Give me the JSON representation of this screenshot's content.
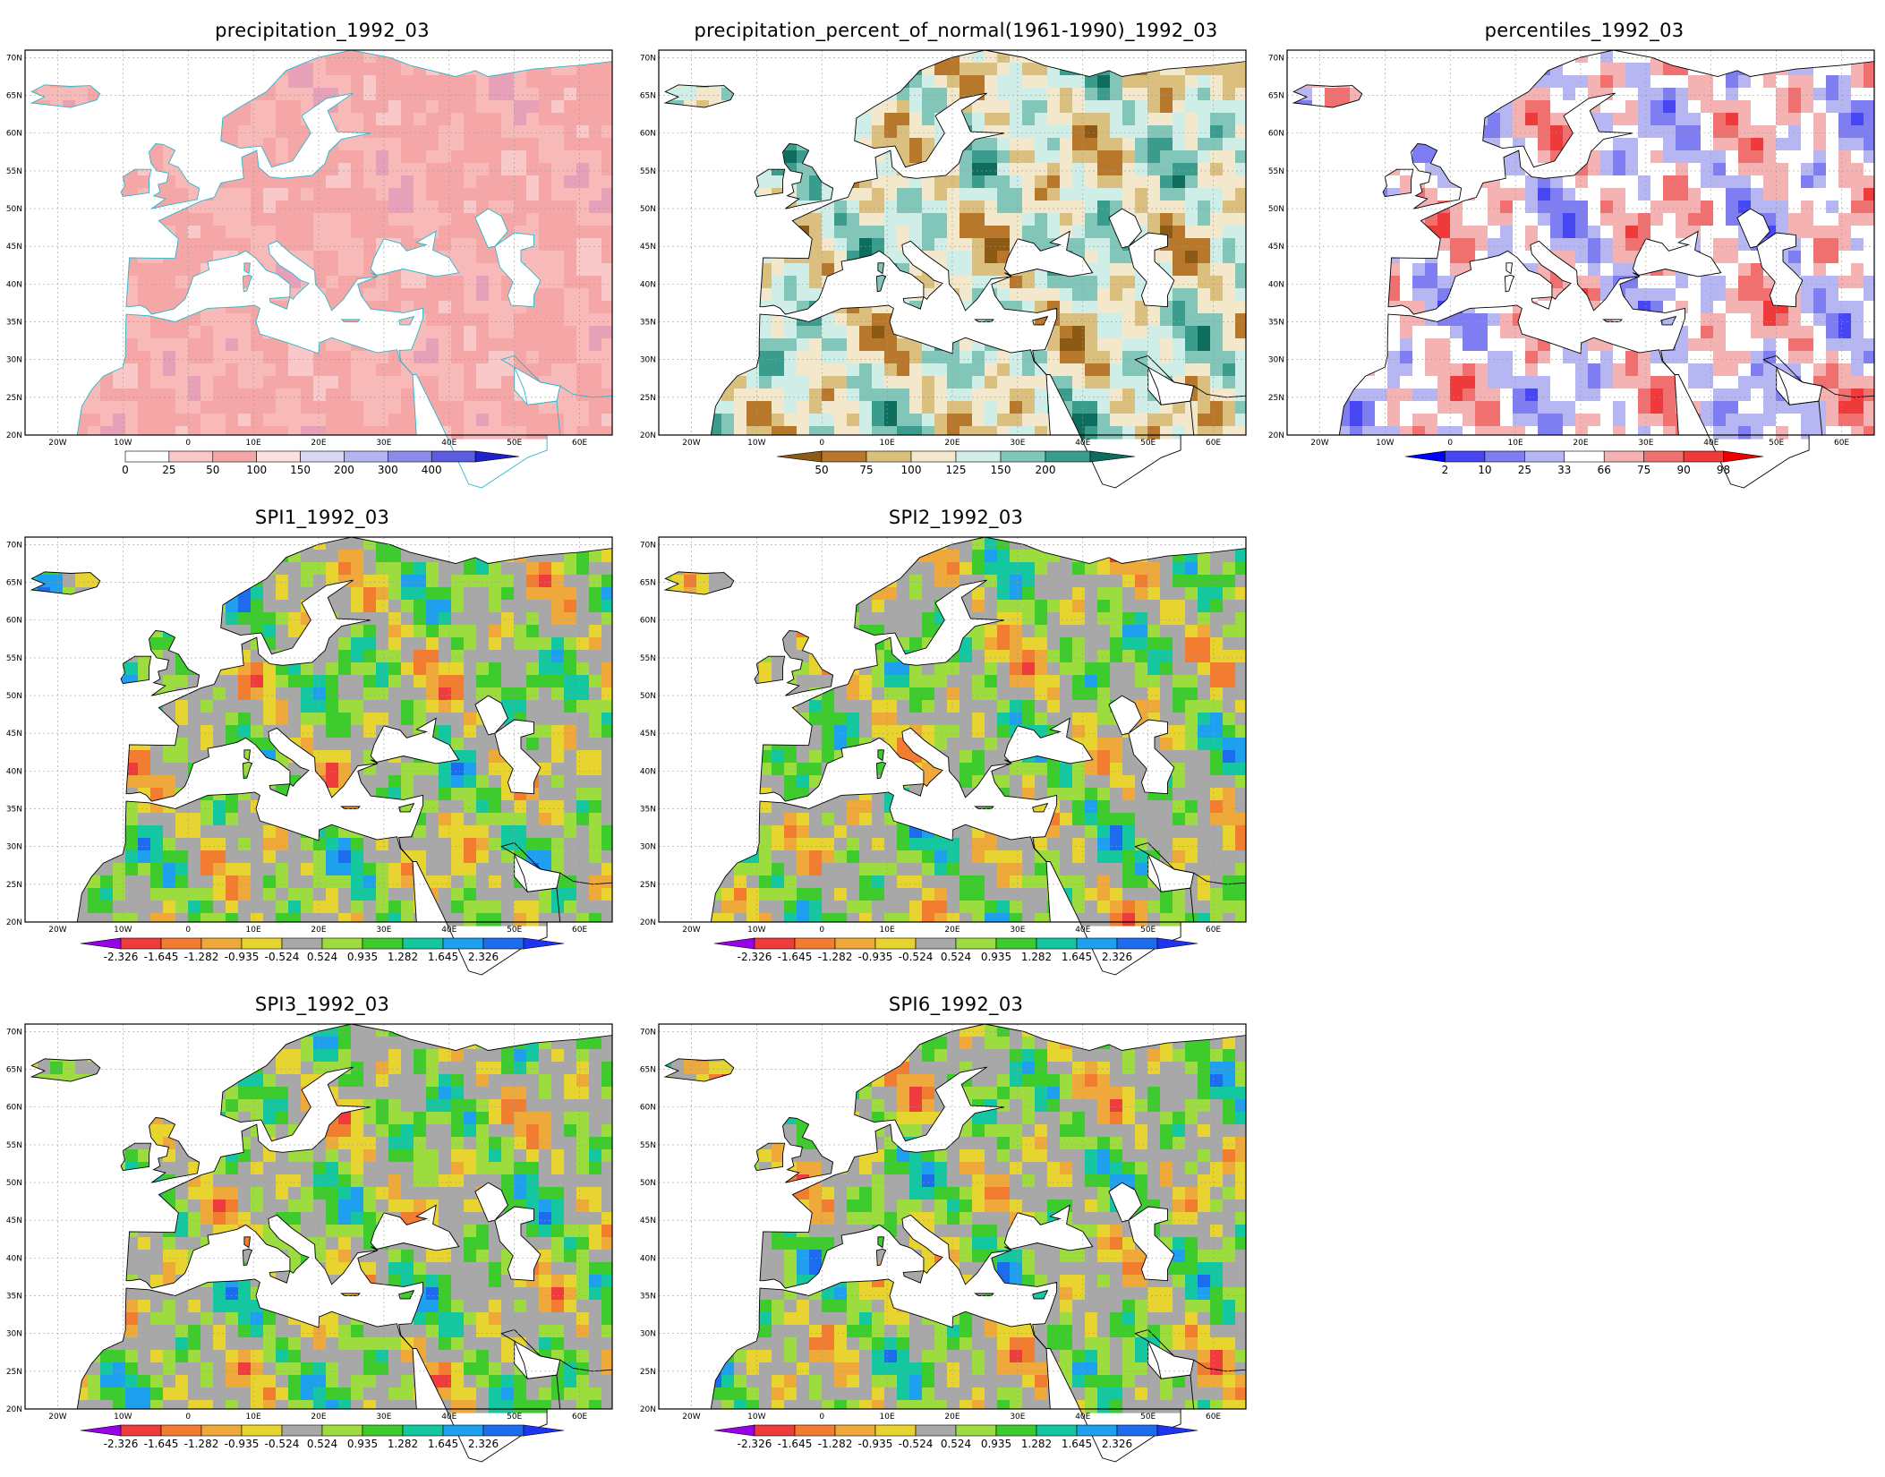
{
  "panels": [
    {
      "id": "precip",
      "title": "precipitation_1992_03",
      "palette": "pct_red",
      "coast": "#29b7c9",
      "colorbar": {
        "colors": [
          "#ffffff",
          "#f9c8c8",
          "#f5a6a6",
          "#fbe0e0",
          "#d8d8f6",
          "#b4b4f0",
          "#8c8ce8",
          "#5c5ce0",
          "#2020cc"
        ],
        "labels": [
          "0",
          "25",
          "50",
          "100",
          "150",
          "200",
          "300",
          "400"
        ],
        "left_arrow": false,
        "right_arrow": true
      }
    },
    {
      "id": "pon",
      "title": "precipitation_percent_of_normal(1961-1990)_1992_03",
      "palette": "brown_teal",
      "coast": "#000000",
      "colorbar": {
        "colors": [
          "#8b5a14",
          "#b8782c",
          "#dbbf7e",
          "#f4e8cc",
          "#cfeee7",
          "#82c6ba",
          "#3a9c8c",
          "#0f6d5d"
        ],
        "labels": [
          "50",
          "75",
          "100",
          "125",
          "150",
          "200"
        ],
        "left_arrow": true,
        "right_arrow": true
      }
    },
    {
      "id": "pctl",
      "title": "percentiles_1992_03",
      "palette": "blue_red",
      "coast": "#000000",
      "colorbar": {
        "colors": [
          "#0000ff",
          "#4646f2",
          "#7e7ef2",
          "#b6b6f2",
          "#ffffff",
          "#f5b2b2",
          "#f07070",
          "#ee3a3a",
          "#ee0000"
        ],
        "labels": [
          "2",
          "10",
          "25",
          "33",
          "66",
          "75",
          "90",
          "98"
        ],
        "left_arrow": true,
        "right_arrow": true
      }
    },
    {
      "id": "spi1",
      "title": "SPI1_1992_03",
      "palette": "spi",
      "coast": "#000000",
      "colorbar": "spi"
    },
    {
      "id": "spi2",
      "title": "SPI2_1992_03",
      "palette": "spi",
      "coast": "#000000",
      "colorbar": "spi"
    },
    {
      "id": "spi3",
      "title": "SPI3_1992_03",
      "palette": "spi",
      "coast": "#000000",
      "colorbar": "spi"
    },
    {
      "id": "spi6",
      "title": "SPI6_1992_03",
      "palette": "spi",
      "coast": "#000000",
      "colorbar": "spi"
    }
  ],
  "spi_colorbar": {
    "colors": [
      "#9a00e6",
      "#ee3b3b",
      "#f27c30",
      "#efa83a",
      "#e8d430",
      "#a8a8a8",
      "#9ddc3e",
      "#3ecb2e",
      "#14c7a0",
      "#1ea0ee",
      "#1e6cee",
      "#2033ee"
    ],
    "labels": [
      "-2.326",
      "-1.645",
      "-1.282",
      "-0.935",
      "-0.524",
      "0.524",
      "0.935",
      "1.282",
      "1.645",
      "2.326"
    ],
    "left_arrow": true,
    "right_arrow": true
  },
  "axes": {
    "lat_labels": [
      "20N",
      "25N",
      "30N",
      "35N",
      "40N",
      "45N",
      "50N",
      "55N",
      "60N",
      "65N",
      "70N"
    ],
    "lon_labels": [
      "20W",
      "10W",
      "0",
      "10E",
      "20E",
      "30E",
      "40E",
      "50E",
      "60E"
    ],
    "lon_range": [
      -25,
      65
    ],
    "lat_range": [
      20,
      71
    ]
  }
}
